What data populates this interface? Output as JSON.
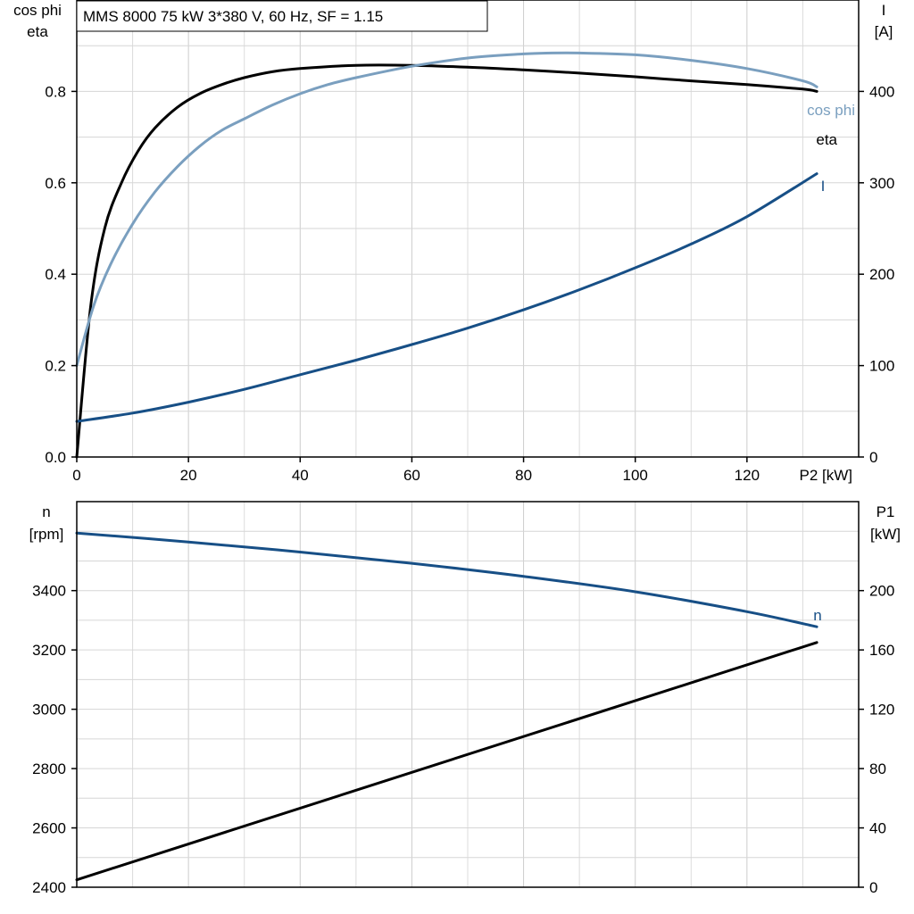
{
  "chart_data": [
    {
      "type": "line",
      "title": "MMS 8000   75 kW   3*380 V, 60 Hz, SF = 1.15",
      "xlabel": "P2 [kW]",
      "ylabel_left": [
        "cos phi",
        "eta"
      ],
      "ylabel_right": [
        "I",
        "[A]"
      ],
      "xlim": [
        0,
        140
      ],
      "ylim_left": [
        0,
        1.0
      ],
      "ylim_right": [
        0,
        500
      ],
      "x_ticks": [
        "0",
        "20",
        "40",
        "60",
        "80",
        "100",
        "120"
      ],
      "y_ticks_left": [
        "0.0",
        "0.2",
        "0.4",
        "0.6",
        "0.8"
      ],
      "y_ticks_right": [
        "0",
        "100",
        "200",
        "300",
        "400"
      ],
      "grid": true,
      "series": [
        {
          "name": "eta",
          "axis": "left",
          "color": "#000000",
          "x": [
            0,
            2.5,
            5,
            8,
            11,
            14,
            18,
            22,
            26,
            30,
            35,
            40,
            50,
            60,
            70,
            80,
            90,
            100,
            110,
            120,
            130,
            132.5
          ],
          "y": [
            0,
            0.33,
            0.5,
            0.6,
            0.67,
            0.72,
            0.765,
            0.795,
            0.815,
            0.83,
            0.843,
            0.85,
            0.857,
            0.857,
            0.853,
            0.847,
            0.84,
            0.832,
            0.823,
            0.815,
            0.805,
            0.8
          ]
        },
        {
          "name": "cos phi",
          "axis": "left",
          "color": "#7a9fbf",
          "x": [
            0,
            3,
            6,
            10,
            14,
            18,
            22,
            26,
            30,
            35,
            40,
            45,
            50,
            60,
            70,
            80,
            85,
            90,
            100,
            110,
            120,
            130,
            132.5
          ],
          "y": [
            0.2,
            0.33,
            0.42,
            0.51,
            0.58,
            0.635,
            0.68,
            0.715,
            0.74,
            0.77,
            0.795,
            0.815,
            0.83,
            0.855,
            0.873,
            0.882,
            0.884,
            0.884,
            0.88,
            0.868,
            0.85,
            0.823,
            0.81
          ]
        },
        {
          "name": "I",
          "axis": "right",
          "color": "#174f86",
          "x": [
            0,
            10,
            20,
            30,
            40,
            50,
            60,
            70,
            80,
            90,
            100,
            110,
            120,
            132.5
          ],
          "y": [
            39,
            48,
            60,
            74,
            90,
            106,
            123,
            141,
            161,
            183,
            207,
            233,
            263,
            310
          ]
        }
      ]
    },
    {
      "type": "line",
      "ylabel_left": [
        "n",
        "[rpm]"
      ],
      "ylabel_right": [
        "P1",
        "[kW]"
      ],
      "xlim": [
        0,
        140
      ],
      "ylim_left": [
        2400,
        3700
      ],
      "ylim_right": [
        0,
        260
      ],
      "y_ticks_left": [
        "2400",
        "2600",
        "2800",
        "3000",
        "3200",
        "3400"
      ],
      "y_ticks_right": [
        "0",
        "40",
        "80",
        "120",
        "160",
        "200"
      ],
      "grid": true,
      "series": [
        {
          "name": "n",
          "axis": "left",
          "color": "#174f86",
          "x": [
            0,
            20,
            40,
            60,
            80,
            100,
            120,
            132.5
          ],
          "y": [
            3594,
            3564,
            3530,
            3492,
            3448,
            3396,
            3329,
            3278
          ]
        },
        {
          "name": "",
          "axis": "right",
          "color": "#000000",
          "x": [
            0,
            132.5
          ],
          "y": [
            5,
            165
          ]
        }
      ]
    }
  ]
}
